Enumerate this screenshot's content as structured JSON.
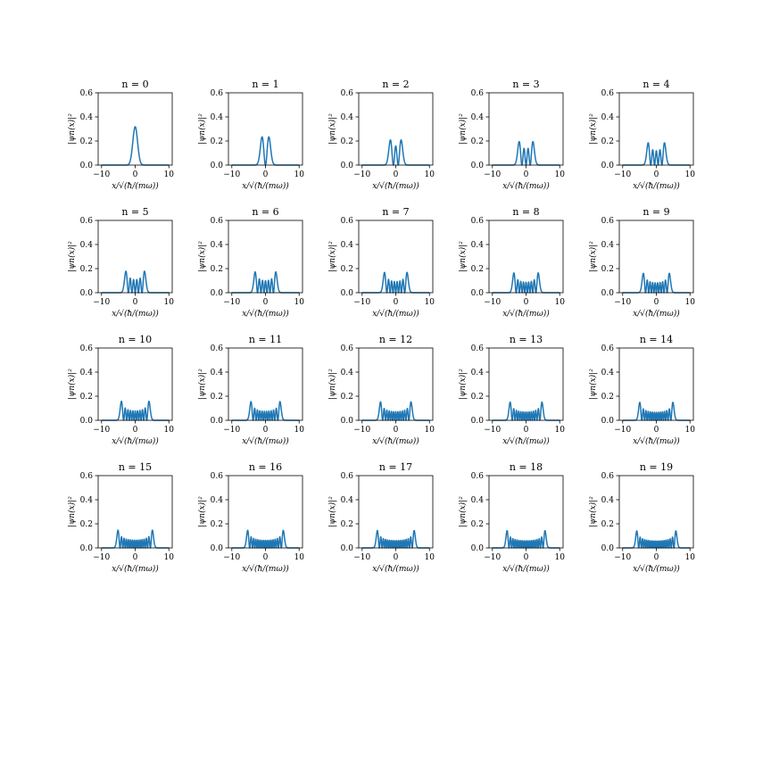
{
  "figure": {
    "axis_color": "#000000",
    "line_color": "#1f77b4",
    "background": "#ffffff"
  },
  "chart_data": {
    "type": "line",
    "description_of_grid": "4 rows by 5 columns of small line plots",
    "xlabel": "x/√(ħ/(mω))",
    "ylabel": "|ψn(x)|²",
    "xlim": [
      -11,
      11
    ],
    "ylim": [
      0,
      0.6
    ],
    "xticks": [
      -10,
      0,
      10
    ],
    "xtick_labels": [
      "−10",
      "0",
      "10"
    ],
    "yticks": [
      0.0,
      0.2,
      0.4,
      0.6
    ],
    "ytick_labels": [
      "0.0",
      "0.2",
      "0.4",
      "0.6"
    ],
    "grid": false,
    "series": [
      {
        "title": "n = 0",
        "n": 0
      },
      {
        "title": "n = 1",
        "n": 1
      },
      {
        "title": "n = 2",
        "n": 2
      },
      {
        "title": "n = 3",
        "n": 3
      },
      {
        "title": "n = 4",
        "n": 4
      },
      {
        "title": "n = 5",
        "n": 5
      },
      {
        "title": "n = 6",
        "n": 6
      },
      {
        "title": "n = 7",
        "n": 7
      },
      {
        "title": "n = 8",
        "n": 8
      },
      {
        "title": "n = 9",
        "n": 9
      },
      {
        "title": "n = 10",
        "n": 10
      },
      {
        "title": "n = 11",
        "n": 11
      },
      {
        "title": "n = 12",
        "n": 12
      },
      {
        "title": "n = 13",
        "n": 13
      },
      {
        "title": "n = 14",
        "n": 14
      },
      {
        "title": "n = 15",
        "n": 15
      },
      {
        "title": "n = 16",
        "n": 16
      },
      {
        "title": "n = 17",
        "n": 17
      },
      {
        "title": "n = 18",
        "n": 18
      },
      {
        "title": "n = 19",
        "n": 19
      }
    ]
  }
}
